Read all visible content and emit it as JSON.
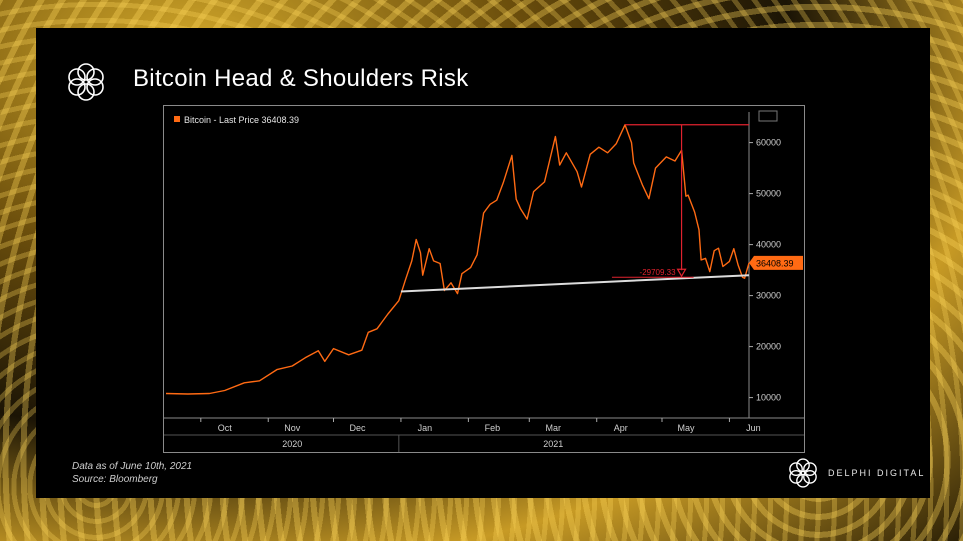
{
  "title": "Bitcoin Head & Shoulders Risk",
  "footnote": {
    "line1": "Data as of June 10th, 2021",
    "line2": "Source: Bloomberg"
  },
  "brand": {
    "name": "DELPHI DIGITAL",
    "logo_icon": "delphi-knot-icon"
  },
  "colors": {
    "series": "#ff6a13",
    "neckline": "#dcdcdc",
    "annotation": "#e0222e"
  },
  "chart_data": {
    "type": "line",
    "legend": "Bitcoin - Last Price 36408.39",
    "last_price_label": "36408.39",
    "drop_label": "-29709.33",
    "y_ticks": [
      {
        "value": 10000,
        "label": "10000"
      },
      {
        "value": 20000,
        "label": "20000"
      },
      {
        "value": 30000,
        "label": "30000"
      },
      {
        "value": 40000,
        "label": "40000"
      },
      {
        "value": 50000,
        "label": "50000"
      },
      {
        "value": 60000,
        "label": "60000"
      }
    ],
    "ylim": [
      6000,
      66000
    ],
    "x_start": "2020-09-15",
    "x_end": "2021-06-10",
    "months": [
      {
        "date": "2020-10-01",
        "label": "Oct"
      },
      {
        "date": "2020-11-01",
        "label": "Nov"
      },
      {
        "date": "2020-12-01",
        "label": "Dec"
      },
      {
        "date": "2021-01-01",
        "label": "Jan"
      },
      {
        "date": "2021-02-01",
        "label": "Feb"
      },
      {
        "date": "2021-03-01",
        "label": "Mar"
      },
      {
        "date": "2021-04-01",
        "label": "Apr"
      },
      {
        "date": "2021-05-01",
        "label": "May"
      },
      {
        "date": "2021-06-01",
        "label": "Jun"
      }
    ],
    "years": [
      {
        "date": "2020-11-01",
        "label": "2020"
      },
      {
        "date": "2021-03-01",
        "label": "2021"
      }
    ],
    "series": [
      {
        "points": [
          [
            "2020-09-15",
            10800
          ],
          [
            "2020-09-25",
            10700
          ],
          [
            "2020-10-05",
            10800
          ],
          [
            "2020-10-12",
            11400
          ],
          [
            "2020-10-21",
            12900
          ],
          [
            "2020-10-28",
            13300
          ],
          [
            "2020-11-05",
            15500
          ],
          [
            "2020-11-12",
            16200
          ],
          [
            "2020-11-18",
            17800
          ],
          [
            "2020-11-24",
            19200
          ],
          [
            "2020-11-27",
            17100
          ],
          [
            "2020-12-01",
            19600
          ],
          [
            "2020-12-08",
            18400
          ],
          [
            "2020-12-14",
            19300
          ],
          [
            "2020-12-17",
            22800
          ],
          [
            "2020-12-21",
            23500
          ],
          [
            "2020-12-26",
            26400
          ],
          [
            "2020-12-31",
            29000
          ],
          [
            "2021-01-03",
            33000
          ],
          [
            "2021-01-06",
            36800
          ],
          [
            "2021-01-08",
            41000
          ],
          [
            "2021-01-10",
            38400
          ],
          [
            "2021-01-11",
            34000
          ],
          [
            "2021-01-14",
            39200
          ],
          [
            "2021-01-16",
            36800
          ],
          [
            "2021-01-19",
            36300
          ],
          [
            "2021-01-21",
            31000
          ],
          [
            "2021-01-24",
            32500
          ],
          [
            "2021-01-27",
            30400
          ],
          [
            "2021-01-29",
            34300
          ],
          [
            "2021-02-02",
            35500
          ],
          [
            "2021-02-05",
            38000
          ],
          [
            "2021-02-08",
            46200
          ],
          [
            "2021-02-11",
            47900
          ],
          [
            "2021-02-14",
            48700
          ],
          [
            "2021-02-17",
            52100
          ],
          [
            "2021-02-21",
            57500
          ],
          [
            "2021-02-23",
            48900
          ],
          [
            "2021-02-25",
            47000
          ],
          [
            "2021-02-28",
            45000
          ],
          [
            "2021-03-03",
            50400
          ],
          [
            "2021-03-08",
            52300
          ],
          [
            "2021-03-13",
            61200
          ],
          [
            "2021-03-15",
            55600
          ],
          [
            "2021-03-18",
            58000
          ],
          [
            "2021-03-23",
            54300
          ],
          [
            "2021-03-25",
            51300
          ],
          [
            "2021-03-29",
            57700
          ],
          [
            "2021-04-02",
            59100
          ],
          [
            "2021-04-06",
            58000
          ],
          [
            "2021-04-10",
            59800
          ],
          [
            "2021-04-14",
            63500
          ],
          [
            "2021-04-17",
            60000
          ],
          [
            "2021-04-18",
            56000
          ],
          [
            "2021-04-22",
            51700
          ],
          [
            "2021-04-25",
            49000
          ],
          [
            "2021-04-28",
            55000
          ],
          [
            "2021-05-03",
            57200
          ],
          [
            "2021-05-07",
            56400
          ],
          [
            "2021-05-10",
            58500
          ],
          [
            "2021-05-12",
            49500
          ],
          [
            "2021-05-13",
            49700
          ],
          [
            "2021-05-16",
            46400
          ],
          [
            "2021-05-18",
            42900
          ],
          [
            "2021-05-19",
            37000
          ],
          [
            "2021-05-21",
            37300
          ],
          [
            "2021-05-23",
            34700
          ],
          [
            "2021-05-25",
            38800
          ],
          [
            "2021-05-27",
            39300
          ],
          [
            "2021-05-29",
            35700
          ],
          [
            "2021-06-01",
            36700
          ],
          [
            "2021-06-03",
            39200
          ],
          [
            "2021-06-05",
            36000
          ],
          [
            "2021-06-07",
            33600
          ],
          [
            "2021-06-08",
            33400
          ],
          [
            "2021-06-10",
            36408
          ]
        ]
      }
    ],
    "neckline": [
      [
        "2021-01-01",
        30800
      ],
      [
        "2021-06-10",
        34000
      ]
    ],
    "peak_line": {
      "y": 63500,
      "from": "2021-04-14",
      "to": "2021-06-10"
    },
    "drop_arrow": {
      "date": "2021-05-10",
      "from": 63500,
      "to": 33800
    }
  }
}
